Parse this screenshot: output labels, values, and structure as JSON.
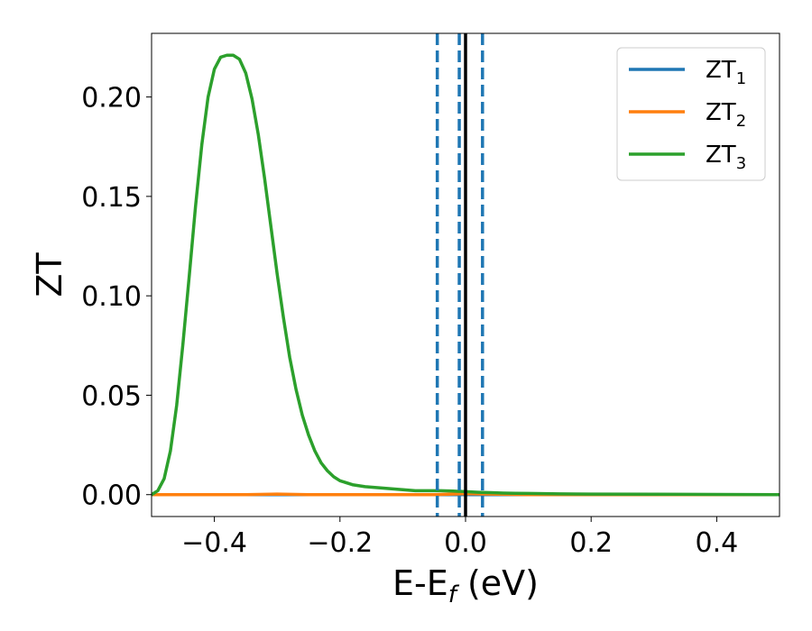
{
  "chart_data": {
    "type": "line",
    "xlabel": "E-E",
    "xlabel_sub": "f",
    "xlabel_unit": " (eV)",
    "ylabel": "ZT",
    "xlim": [
      -0.5,
      0.5
    ],
    "ylim": [
      -0.011,
      0.232
    ],
    "x_ticks": [
      -0.4,
      -0.2,
      0.0,
      0.2,
      0.4
    ],
    "x_tick_labels": [
      "−0.4",
      "−0.2",
      "0.0",
      "0.2",
      "0.4"
    ],
    "y_ticks": [
      0.0,
      0.05,
      0.1,
      0.15,
      0.2
    ],
    "y_tick_labels": [
      "0.00",
      "0.05",
      "0.10",
      "0.15",
      "0.20"
    ],
    "grid": false,
    "legend_position": "top-right",
    "series": [
      {
        "name": "ZT",
        "subscript": "1",
        "color": "#1f77b4",
        "x": [
          -0.5,
          0.5
        ],
        "y": [
          0.0,
          0.0
        ]
      },
      {
        "name": "ZT",
        "subscript": "2",
        "color": "#ff7f0e",
        "x": [
          -0.5,
          -0.45,
          -0.4,
          -0.35,
          -0.3,
          -0.25,
          -0.2,
          -0.15,
          -0.1,
          -0.05,
          0.0,
          0.05,
          0.1,
          0.15,
          0.2,
          0.25,
          0.3,
          0.35,
          0.4,
          0.45,
          0.5
        ],
        "y": [
          0.0,
          0.0,
          0.0,
          0.0,
          0.0003,
          0.0,
          0.0,
          0.0,
          0.0,
          0.0,
          0.0005,
          0.0002,
          0.0,
          0.0,
          0.0,
          0.0,
          0.0,
          0.0,
          0.0,
          0.0,
          0.0
        ]
      },
      {
        "name": "ZT",
        "subscript": "3",
        "color": "#2ca02c",
        "x": [
          -0.5,
          -0.49,
          -0.48,
          -0.47,
          -0.46,
          -0.45,
          -0.44,
          -0.43,
          -0.42,
          -0.41,
          -0.4,
          -0.39,
          -0.38,
          -0.37,
          -0.36,
          -0.35,
          -0.34,
          -0.33,
          -0.32,
          -0.31,
          -0.3,
          -0.29,
          -0.28,
          -0.27,
          -0.26,
          -0.25,
          -0.24,
          -0.23,
          -0.22,
          -0.21,
          -0.2,
          -0.18,
          -0.16,
          -0.14,
          -0.12,
          -0.1,
          -0.08,
          -0.06,
          -0.04,
          -0.02,
          0.0,
          0.02,
          0.04,
          0.06,
          0.08,
          0.1,
          0.15,
          0.2,
          0.3,
          0.4,
          0.5
        ],
        "y": [
          0.0,
          0.002,
          0.008,
          0.022,
          0.045,
          0.076,
          0.11,
          0.145,
          0.176,
          0.2,
          0.214,
          0.22,
          0.221,
          0.221,
          0.219,
          0.212,
          0.199,
          0.181,
          0.159,
          0.135,
          0.111,
          0.089,
          0.069,
          0.053,
          0.04,
          0.03,
          0.022,
          0.016,
          0.012,
          0.009,
          0.007,
          0.005,
          0.004,
          0.0035,
          0.003,
          0.0025,
          0.002,
          0.002,
          0.002,
          0.0018,
          0.0015,
          0.0012,
          0.001,
          0.0008,
          0.0007,
          0.0006,
          0.0004,
          0.0003,
          0.0002,
          0.0001,
          0.0
        ]
      }
    ],
    "vertical_lines": [
      {
        "x": -0.045,
        "style": "dashed",
        "color": "#1f77b4"
      },
      {
        "x": -0.01,
        "style": "dashed",
        "color": "#1f77b4"
      },
      {
        "x": 0.027,
        "style": "dashed",
        "color": "#1f77b4"
      },
      {
        "x": 0.0,
        "style": "solid",
        "color": "#000000"
      }
    ]
  }
}
